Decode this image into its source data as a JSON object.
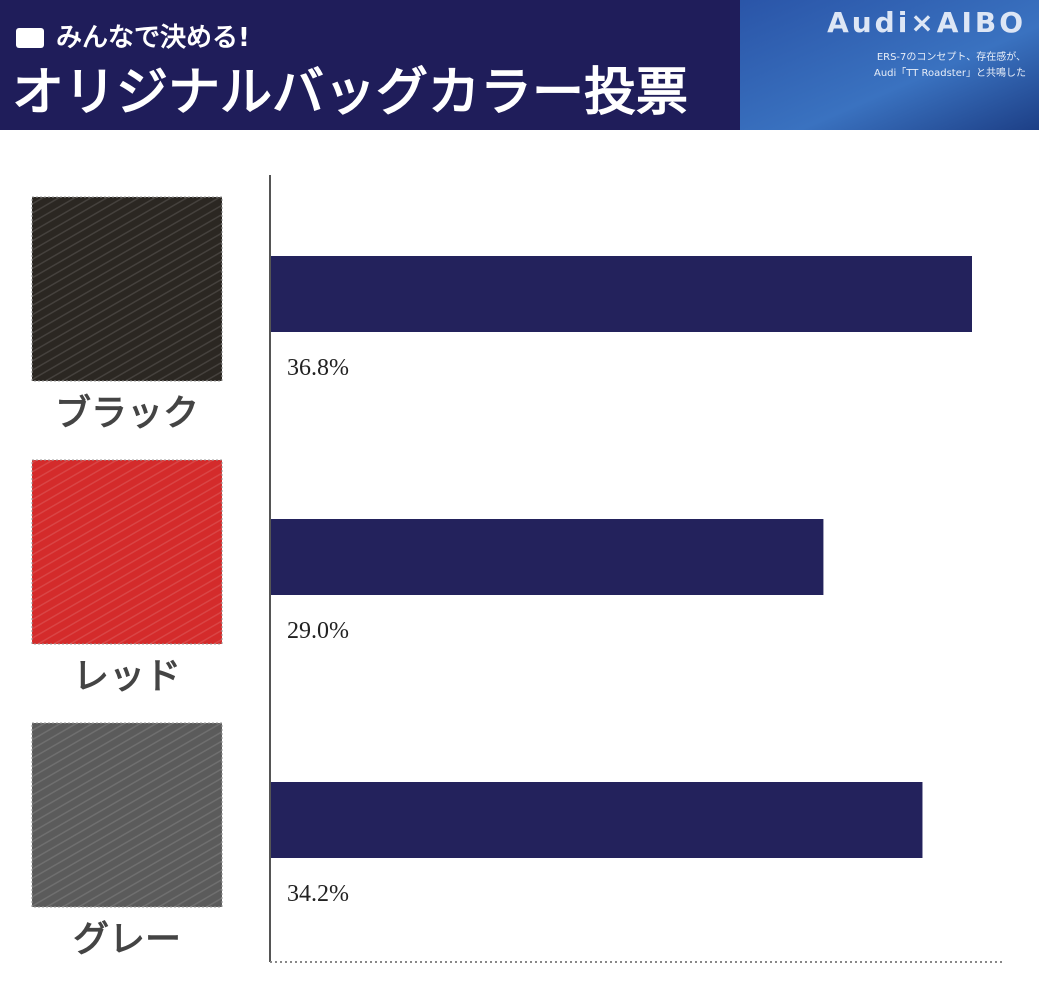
{
  "header": {
    "tag": "みんなで決める!",
    "title": "オリジナルバッグカラー投票",
    "logo": "Audi×AIBO",
    "logo_sub": [
      "ERS-7のコンセプト、存在感が、",
      "Audi「TT Roadster」と共鳴した"
    ]
  },
  "chart_data": {
    "type": "hbar",
    "categories": [
      "ブラック",
      "レッド",
      "グレー"
    ],
    "values": [
      36.8,
      29.0,
      34.2
    ],
    "value_labels": [
      "36.8%",
      "29.0%",
      "34.2%"
    ],
    "color": "#23225c",
    "category_colors": [
      "#2b2722",
      "#d42b2b",
      "#5b5b5b"
    ]
  }
}
